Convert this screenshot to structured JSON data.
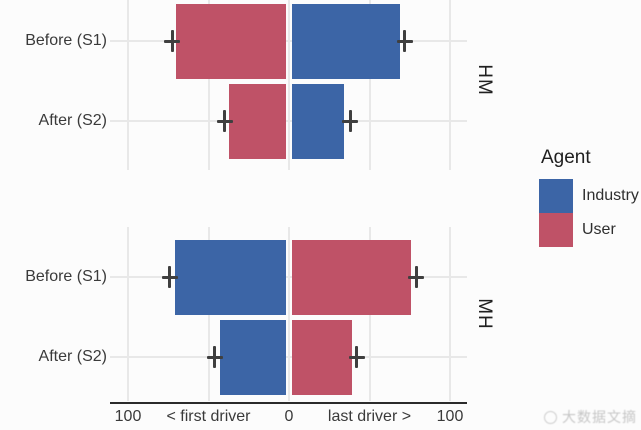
{
  "chart_data": {
    "type": "bar",
    "orientation": "horizontal-diverging",
    "grid": true,
    "legend_position": "right",
    "x_axis": {
      "range": [
        -100,
        100
      ],
      "ticks": [
        {
          "value": -100,
          "label": "100"
        },
        {
          "value": -50,
          "label": "< first driver"
        },
        {
          "value": 0,
          "label": "0"
        },
        {
          "value": 50,
          "label": "last driver >"
        },
        {
          "value": 100,
          "label": "100"
        }
      ]
    },
    "facets": [
      {
        "label": "HM",
        "rows": [
          {
            "category": "Before (S1)",
            "bars": [
              {
                "agent": "User",
                "side": "left",
                "value": 70,
                "err_center": 72.5,
                "err_half_units": 5
              },
              {
                "agent": "Industry",
                "side": "right",
                "value": 69,
                "err_center": 72,
                "err_half_units": 5
              }
            ]
          },
          {
            "category": "After (S2)",
            "bars": [
              {
                "agent": "User",
                "side": "left",
                "value": 37,
                "err_center": 40,
                "err_half_units": 5
              },
              {
                "agent": "Industry",
                "side": "right",
                "value": 34,
                "err_center": 38,
                "err_half_units": 5
              }
            ]
          }
        ]
      },
      {
        "label": "MH",
        "rows": [
          {
            "category": "Before (S1)",
            "bars": [
              {
                "agent": "Industry",
                "side": "left",
                "value": 71,
                "err_center": 74,
                "err_half_units": 5
              },
              {
                "agent": "User",
                "side": "right",
                "value": 76,
                "err_center": 79,
                "err_half_units": 5
              }
            ]
          },
          {
            "category": "After (S2)",
            "bars": [
              {
                "agent": "Industry",
                "side": "left",
                "value": 43,
                "err_center": 46,
                "err_half_units": 5
              },
              {
                "agent": "User",
                "side": "right",
                "value": 39,
                "err_center": 42,
                "err_half_units": 5
              }
            ]
          }
        ]
      }
    ],
    "legend": {
      "title": "Agent",
      "entries": [
        {
          "label": "Industry",
          "color": "#3c65a6"
        },
        {
          "label": "User",
          "color": "#bf5267"
        }
      ]
    },
    "colors": {
      "Industry": "#3c65a6",
      "User": "#bf5267",
      "gridline": "#e8e8e8",
      "errorbar": "#3f3f3f",
      "axis_line": "#2b2b2b",
      "text": "#3a3a3a"
    }
  },
  "watermark": {
    "text": "大数据文摘"
  }
}
